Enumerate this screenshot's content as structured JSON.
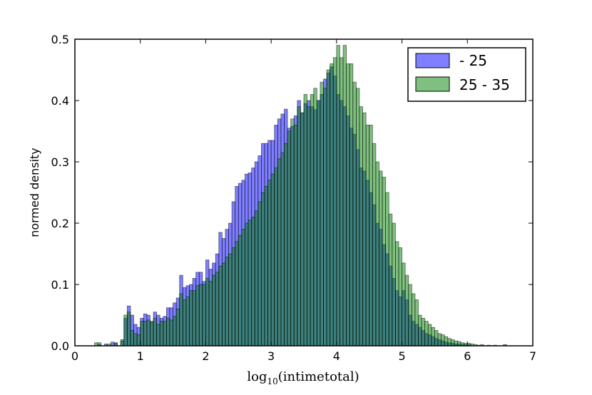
{
  "chart_data": {
    "type": "bar",
    "title": "",
    "xlabel": "log10(intimetotal)",
    "xlabel_parts": {
      "base": "log",
      "sub": "10",
      "arg": "(intimetotal)"
    },
    "ylabel": "normed density",
    "xlim": [
      0,
      7
    ],
    "ylim": [
      0,
      0.5
    ],
    "xticks": [
      "0",
      "1",
      "2",
      "3",
      "4",
      "5",
      "6",
      "7"
    ],
    "yticks": [
      "0.0",
      "0.1",
      "0.2",
      "0.3",
      "0.4",
      "0.5"
    ],
    "legend_position": "top-right",
    "bin_width": 0.05,
    "series": [
      {
        "name": "- 25",
        "color": "#0000ff",
        "opacity": 0.5,
        "points": [
          [
            0.35,
            0.002
          ],
          [
            0.45,
            0.003
          ],
          [
            0.55,
            0.006
          ],
          [
            0.6,
            0.004
          ],
          [
            0.7,
            0.008
          ],
          [
            0.75,
            0.045
          ],
          [
            0.8,
            0.065
          ],
          [
            0.85,
            0.05
          ],
          [
            0.9,
            0.035
          ],
          [
            0.95,
            0.03
          ],
          [
            1.0,
            0.045
          ],
          [
            1.05,
            0.052
          ],
          [
            1.1,
            0.05
          ],
          [
            1.15,
            0.04
          ],
          [
            1.2,
            0.055
          ],
          [
            1.25,
            0.05
          ],
          [
            1.3,
            0.045
          ],
          [
            1.35,
            0.048
          ],
          [
            1.4,
            0.062
          ],
          [
            1.45,
            0.062
          ],
          [
            1.5,
            0.07
          ],
          [
            1.55,
            0.078
          ],
          [
            1.6,
            0.115
          ],
          [
            1.65,
            0.095
          ],
          [
            1.7,
            0.098
          ],
          [
            1.75,
            0.1
          ],
          [
            1.8,
            0.11
          ],
          [
            1.85,
            0.12
          ],
          [
            1.9,
            0.12
          ],
          [
            1.95,
            0.105
          ],
          [
            2.0,
            0.14
          ],
          [
            2.05,
            0.125
          ],
          [
            2.1,
            0.135
          ],
          [
            2.15,
            0.15
          ],
          [
            2.2,
            0.185
          ],
          [
            2.25,
            0.175
          ],
          [
            2.3,
            0.19
          ],
          [
            2.35,
            0.2
          ],
          [
            2.4,
            0.235
          ],
          [
            2.45,
            0.26
          ],
          [
            2.5,
            0.265
          ],
          [
            2.55,
            0.27
          ],
          [
            2.6,
            0.28
          ],
          [
            2.65,
            0.282
          ],
          [
            2.7,
            0.29
          ],
          [
            2.75,
            0.3
          ],
          [
            2.8,
            0.31
          ],
          [
            2.85,
            0.33
          ],
          [
            2.9,
            0.33
          ],
          [
            2.95,
            0.335
          ],
          [
            3.0,
            0.335
          ],
          [
            3.05,
            0.36
          ],
          [
            3.1,
            0.37
          ],
          [
            3.15,
            0.378
          ],
          [
            3.2,
            0.386
          ],
          [
            3.25,
            0.355
          ],
          [
            3.3,
            0.358
          ],
          [
            3.35,
            0.375
          ],
          [
            3.4,
            0.4
          ],
          [
            3.45,
            0.38
          ],
          [
            3.5,
            0.395
          ],
          [
            3.55,
            0.4
          ],
          [
            3.6,
            0.39
          ],
          [
            3.65,
            0.385
          ],
          [
            3.7,
            0.4
          ],
          [
            3.75,
            0.41
          ],
          [
            3.8,
            0.435
          ],
          [
            3.85,
            0.445
          ],
          [
            3.9,
            0.455
          ],
          [
            3.95,
            0.44
          ],
          [
            4.0,
            0.41
          ],
          [
            4.05,
            0.4
          ],
          [
            4.1,
            0.39
          ],
          [
            4.15,
            0.375
          ],
          [
            4.2,
            0.355
          ],
          [
            4.25,
            0.345
          ],
          [
            4.3,
            0.32
          ],
          [
            4.35,
            0.29
          ],
          [
            4.4,
            0.285
          ],
          [
            4.45,
            0.27
          ],
          [
            4.5,
            0.25
          ],
          [
            4.55,
            0.23
          ],
          [
            4.6,
            0.2
          ],
          [
            4.65,
            0.19
          ],
          [
            4.7,
            0.165
          ],
          [
            4.75,
            0.15
          ],
          [
            4.8,
            0.13
          ],
          [
            4.85,
            0.11
          ],
          [
            4.9,
            0.09
          ],
          [
            4.95,
            0.08
          ],
          [
            5.0,
            0.09
          ],
          [
            5.05,
            0.075
          ],
          [
            5.1,
            0.05
          ],
          [
            5.15,
            0.04
          ],
          [
            5.2,
            0.035
          ],
          [
            5.25,
            0.03
          ],
          [
            5.3,
            0.025
          ],
          [
            5.35,
            0.02
          ],
          [
            5.4,
            0.018
          ],
          [
            5.45,
            0.015
          ],
          [
            5.5,
            0.012
          ],
          [
            5.55,
            0.01
          ],
          [
            5.6,
            0.008
          ],
          [
            5.65,
            0.006
          ],
          [
            5.7,
            0.005
          ],
          [
            5.75,
            0.004
          ],
          [
            5.8,
            0.003
          ],
          [
            5.85,
            0.003
          ],
          [
            5.9,
            0.002
          ],
          [
            5.95,
            0.002
          ],
          [
            6.0,
            0.002
          ],
          [
            6.15,
            0.001
          ],
          [
            6.55,
            0.002
          ]
        ]
      },
      {
        "name": "25 - 35",
        "color": "#008000",
        "opacity": 0.5,
        "points": [
          [
            0.3,
            0.005
          ],
          [
            0.35,
            0.005
          ],
          [
            0.5,
            0.003
          ],
          [
            0.6,
            0.005
          ],
          [
            0.7,
            0.01
          ],
          [
            0.75,
            0.05
          ],
          [
            0.8,
            0.055
          ],
          [
            0.85,
            0.025
          ],
          [
            0.9,
            0.02
          ],
          [
            0.95,
            0.018
          ],
          [
            1.0,
            0.04
          ],
          [
            1.05,
            0.04
          ],
          [
            1.1,
            0.042
          ],
          [
            1.15,
            0.038
          ],
          [
            1.2,
            0.045
          ],
          [
            1.25,
            0.035
          ],
          [
            1.3,
            0.04
          ],
          [
            1.35,
            0.04
          ],
          [
            1.4,
            0.045
          ],
          [
            1.45,
            0.042
          ],
          [
            1.5,
            0.048
          ],
          [
            1.55,
            0.06
          ],
          [
            1.6,
            0.085
          ],
          [
            1.65,
            0.075
          ],
          [
            1.7,
            0.08
          ],
          [
            1.75,
            0.09
          ],
          [
            1.8,
            0.09
          ],
          [
            1.85,
            0.098
          ],
          [
            1.9,
            0.1
          ],
          [
            1.95,
            0.1
          ],
          [
            2.0,
            0.11
          ],
          [
            2.05,
            0.105
          ],
          [
            2.1,
            0.115
          ],
          [
            2.15,
            0.12
          ],
          [
            2.2,
            0.13
          ],
          [
            2.25,
            0.135
          ],
          [
            2.3,
            0.145
          ],
          [
            2.35,
            0.15
          ],
          [
            2.4,
            0.16
          ],
          [
            2.45,
            0.17
          ],
          [
            2.5,
            0.18
          ],
          [
            2.55,
            0.19
          ],
          [
            2.6,
            0.2
          ],
          [
            2.65,
            0.205
          ],
          [
            2.7,
            0.21
          ],
          [
            2.75,
            0.22
          ],
          [
            2.8,
            0.235
          ],
          [
            2.85,
            0.25
          ],
          [
            2.9,
            0.26
          ],
          [
            2.95,
            0.27
          ],
          [
            3.0,
            0.28
          ],
          [
            3.05,
            0.29
          ],
          [
            3.1,
            0.305
          ],
          [
            3.15,
            0.315
          ],
          [
            3.2,
            0.33
          ],
          [
            3.25,
            0.35
          ],
          [
            3.3,
            0.37
          ],
          [
            3.35,
            0.36
          ],
          [
            3.4,
            0.39
          ],
          [
            3.45,
            0.38
          ],
          [
            3.5,
            0.41
          ],
          [
            3.55,
            0.39
          ],
          [
            3.6,
            0.41
          ],
          [
            3.65,
            0.42
          ],
          [
            3.7,
            0.4
          ],
          [
            3.75,
            0.43
          ],
          [
            3.8,
            0.42
          ],
          [
            3.85,
            0.45
          ],
          [
            3.9,
            0.46
          ],
          [
            3.95,
            0.47
          ],
          [
            4.0,
            0.49
          ],
          [
            4.05,
            0.47
          ],
          [
            4.1,
            0.49
          ],
          [
            4.15,
            0.46
          ],
          [
            4.2,
            0.46
          ],
          [
            4.25,
            0.43
          ],
          [
            4.3,
            0.42
          ],
          [
            4.35,
            0.39
          ],
          [
            4.4,
            0.38
          ],
          [
            4.45,
            0.36
          ],
          [
            4.5,
            0.36
          ],
          [
            4.55,
            0.33
          ],
          [
            4.6,
            0.3
          ],
          [
            4.65,
            0.285
          ],
          [
            4.7,
            0.275
          ],
          [
            4.75,
            0.25
          ],
          [
            4.8,
            0.215
          ],
          [
            4.85,
            0.2
          ],
          [
            4.9,
            0.17
          ],
          [
            4.95,
            0.16
          ],
          [
            5.0,
            0.135
          ],
          [
            5.05,
            0.115
          ],
          [
            5.1,
            0.1
          ],
          [
            5.15,
            0.085
          ],
          [
            5.2,
            0.075
          ],
          [
            5.25,
            0.05
          ],
          [
            5.3,
            0.045
          ],
          [
            5.35,
            0.04
          ],
          [
            5.4,
            0.035
          ],
          [
            5.45,
            0.03
          ],
          [
            5.5,
            0.025
          ],
          [
            5.55,
            0.02
          ],
          [
            5.6,
            0.018
          ],
          [
            5.65,
            0.015
          ],
          [
            5.7,
            0.012
          ],
          [
            5.75,
            0.01
          ],
          [
            5.8,
            0.008
          ],
          [
            5.85,
            0.007
          ],
          [
            5.9,
            0.005
          ],
          [
            5.95,
            0.004
          ],
          [
            6.0,
            0.004
          ],
          [
            6.05,
            0.003
          ],
          [
            6.1,
            0.002
          ],
          [
            6.2,
            0.002
          ],
          [
            6.3,
            0.001
          ],
          [
            6.4,
            0.001
          ]
        ]
      }
    ]
  }
}
